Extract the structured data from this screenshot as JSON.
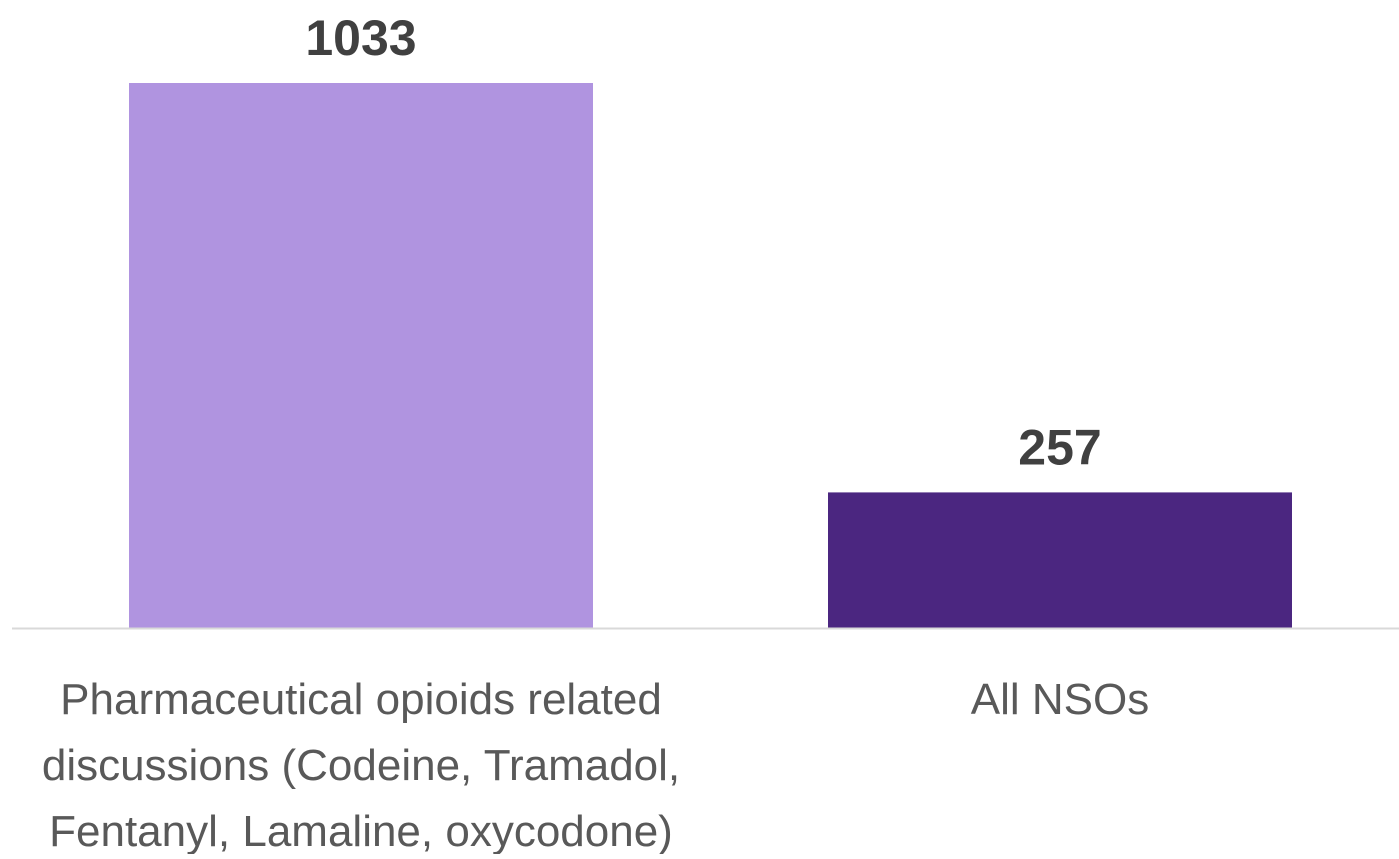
{
  "chart_data": {
    "type": "bar",
    "categories": [
      [
        "Pharmaceutical opioids related",
        "discussions (Codeine, Tramadol,",
        "Fentanyl, Lamaline, oxycodone)"
      ],
      [
        "All NSOs"
      ]
    ],
    "values": [
      1033,
      257
    ],
    "data_labels": [
      "1033",
      "257"
    ],
    "bar_colors": [
      "#b094e0",
      "#4b2680"
    ],
    "title": "",
    "xlabel": "",
    "ylabel": "",
    "ylim": [
      0,
      1033
    ],
    "grid": false,
    "legend": "none"
  }
}
